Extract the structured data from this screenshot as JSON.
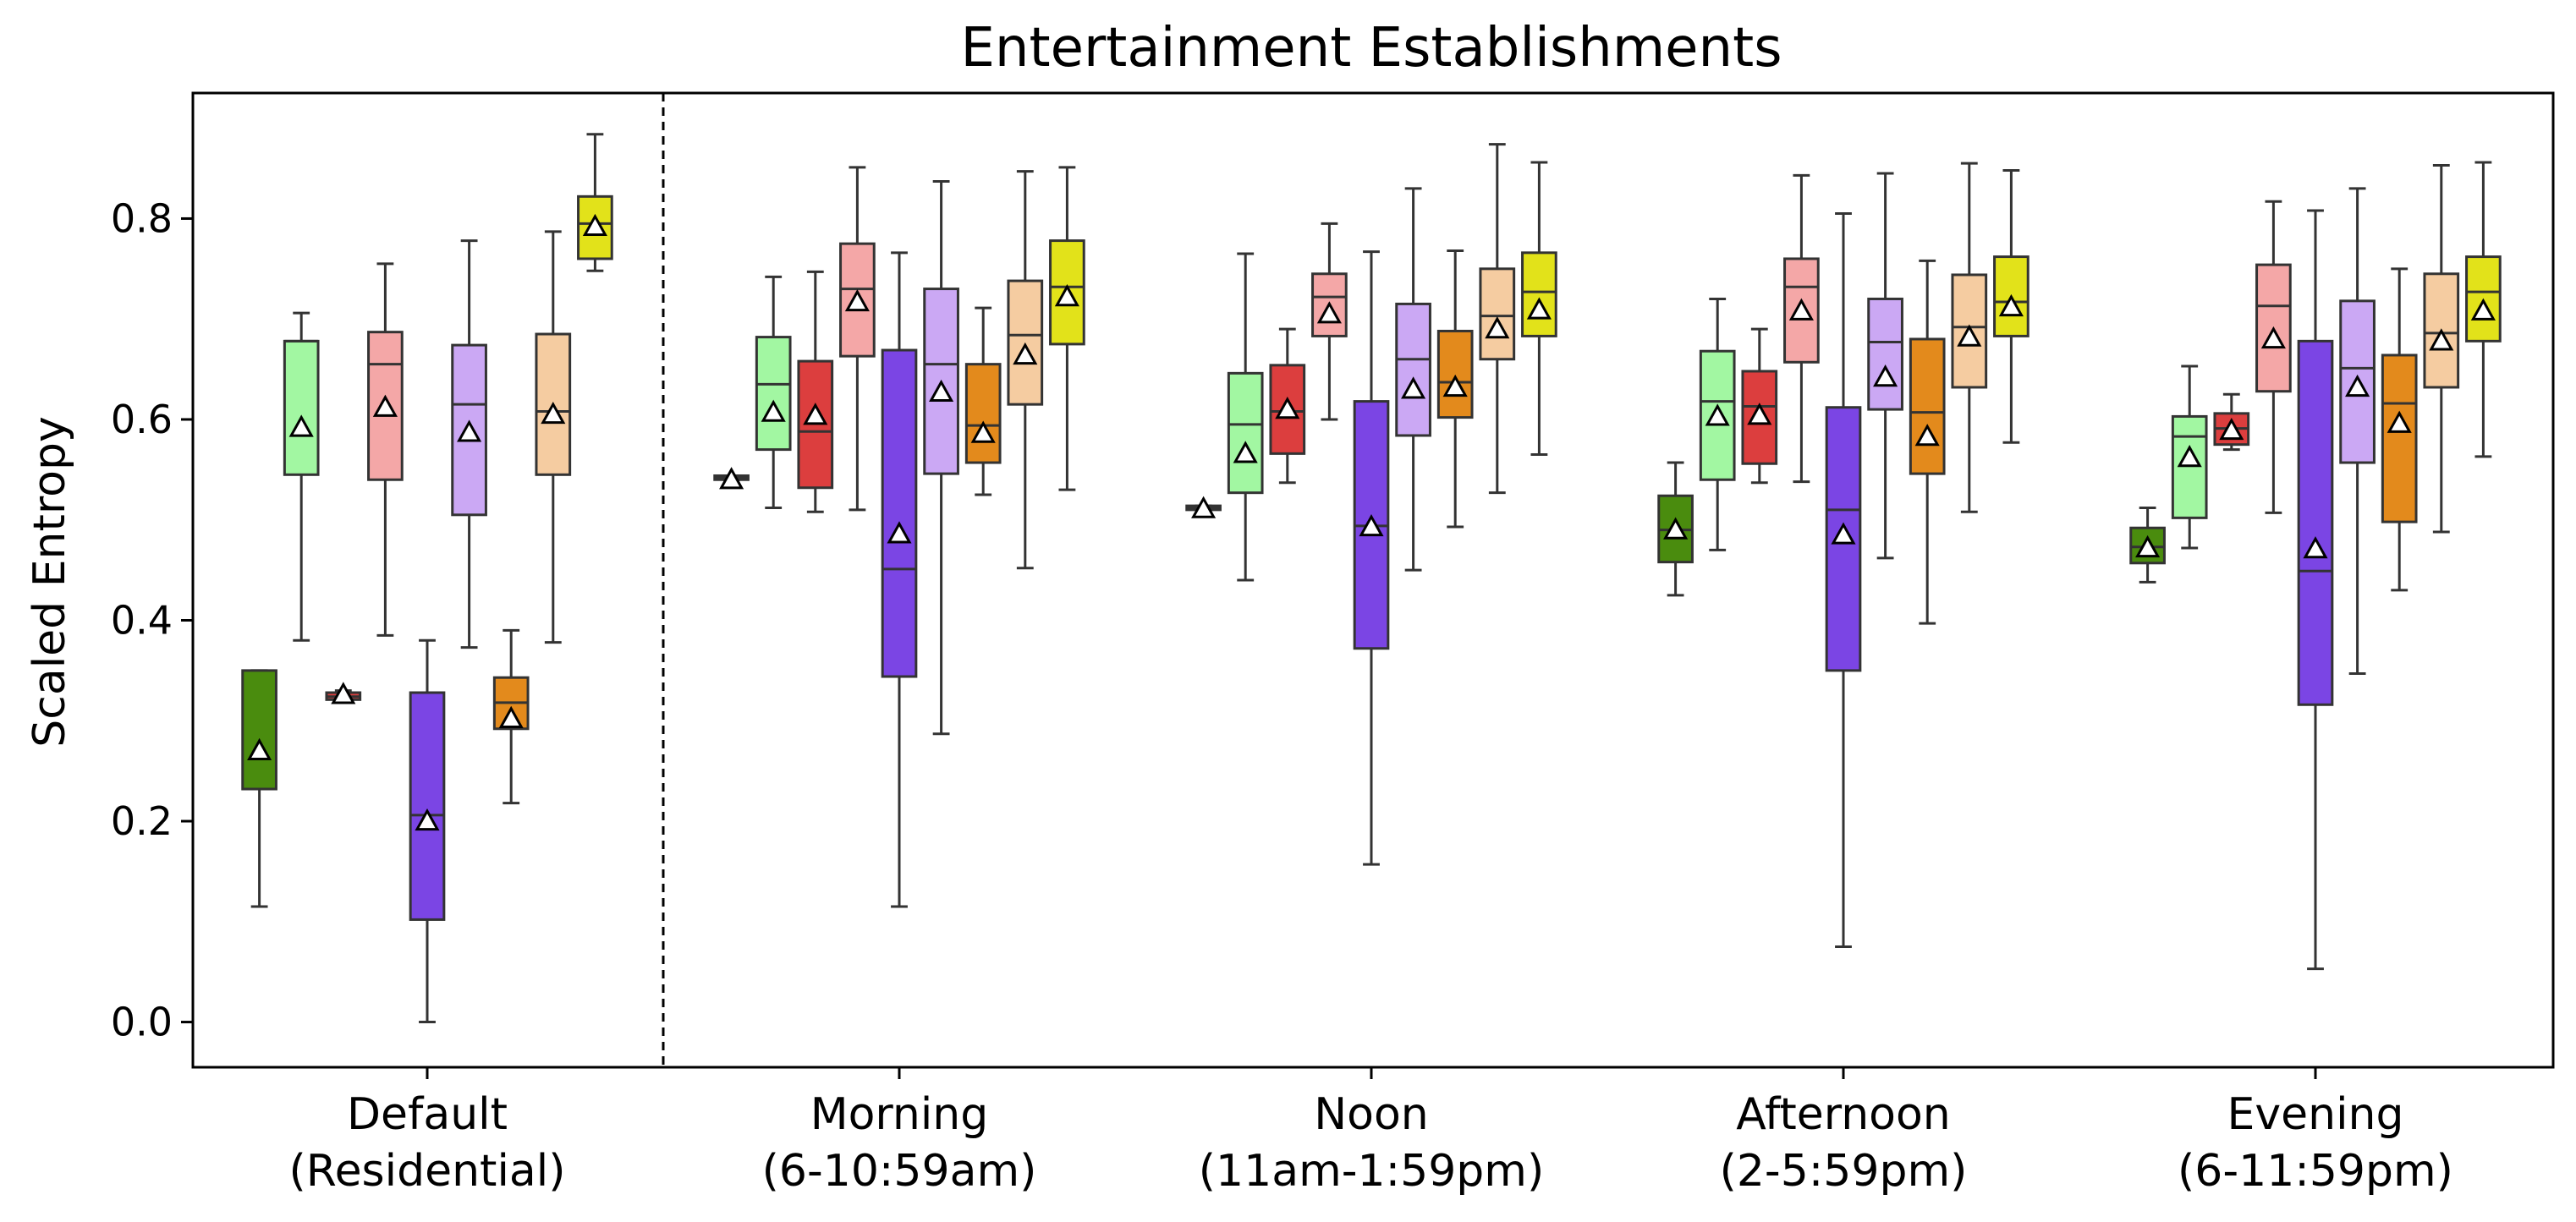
{
  "chart_data": {
    "type": "box",
    "title": "Entertainment Establishments",
    "xlabel": "",
    "ylabel": "Scaled Entropy",
    "ylim": [
      -0.045,
      0.925
    ],
    "yticks": [
      0.0,
      0.2,
      0.4,
      0.6,
      0.8
    ],
    "ytick_labels": [
      "0.0",
      "0.2",
      "0.4",
      "0.6",
      "0.8"
    ],
    "grid": false,
    "legend": "none",
    "separator_after_group": 0,
    "mean_marker": "triangle",
    "series_colors": [
      "#4a8c0e",
      "#a2f7a2",
      "#dc3e3e",
      "#f4a7a7",
      "#7b45e4",
      "#cba8f4",
      "#e38a1c",
      "#f5cca1",
      "#e2e21a"
    ],
    "groups": [
      {
        "label_line1": "Default",
        "label_line2": "(Residential)",
        "boxes": [
          {
            "series": 0,
            "whislo": 0.115,
            "q1": 0.232,
            "med": 0.232,
            "q3": 0.35,
            "whishi": 0.35,
            "mean": 0.27
          },
          {
            "series": 1,
            "whislo": 0.38,
            "q1": 0.545,
            "med": 0.678,
            "q3": 0.678,
            "whishi": 0.706,
            "mean": 0.592
          },
          {
            "series": 2,
            "whislo": 0.321,
            "q1": 0.321,
            "med": 0.324,
            "q3": 0.328,
            "whishi": 0.33,
            "mean": 0.326
          },
          {
            "series": 3,
            "whislo": 0.385,
            "q1": 0.54,
            "med": 0.655,
            "q3": 0.687,
            "whishi": 0.755,
            "mean": 0.612
          },
          {
            "series": 4,
            "whislo": 0.0,
            "q1": 0.102,
            "med": 0.206,
            "q3": 0.328,
            "whishi": 0.38,
            "mean": 0.2
          },
          {
            "series": 5,
            "whislo": 0.373,
            "q1": 0.505,
            "med": 0.615,
            "q3": 0.674,
            "whishi": 0.778,
            "mean": 0.587
          },
          {
            "series": 6,
            "whislo": 0.218,
            "q1": 0.292,
            "med": 0.318,
            "q3": 0.343,
            "whishi": 0.39,
            "mean": 0.302
          },
          {
            "series": 7,
            "whislo": 0.378,
            "q1": 0.545,
            "med": 0.608,
            "q3": 0.685,
            "whishi": 0.787,
            "mean": 0.605
          },
          {
            "series": 8,
            "whislo": 0.748,
            "q1": 0.76,
            "med": 0.795,
            "q3": 0.822,
            "whishi": 0.884,
            "mean": 0.792
          }
        ]
      },
      {
        "label_line1": "Morning",
        "label_line2": "(6-10:59am)",
        "boxes": [
          {
            "series": 0,
            "whislo": 0.54,
            "q1": 0.54,
            "med": 0.542,
            "q3": 0.544,
            "whishi": 0.544,
            "mean": 0.54
          },
          {
            "series": 1,
            "whislo": 0.512,
            "q1": 0.57,
            "med": 0.635,
            "q3": 0.682,
            "whishi": 0.742,
            "mean": 0.607
          },
          {
            "series": 2,
            "whislo": 0.508,
            "q1": 0.532,
            "med": 0.588,
            "q3": 0.658,
            "whishi": 0.747,
            "mean": 0.604
          },
          {
            "series": 3,
            "whislo": 0.51,
            "q1": 0.663,
            "med": 0.73,
            "q3": 0.775,
            "whishi": 0.851,
            "mean": 0.717
          },
          {
            "series": 4,
            "whislo": 0.115,
            "q1": 0.344,
            "med": 0.451,
            "q3": 0.669,
            "whishi": 0.766,
            "mean": 0.486
          },
          {
            "series": 5,
            "whislo": 0.287,
            "q1": 0.546,
            "med": 0.655,
            "q3": 0.73,
            "whishi": 0.837,
            "mean": 0.627
          },
          {
            "series": 6,
            "whislo": 0.525,
            "q1": 0.557,
            "med": 0.594,
            "q3": 0.655,
            "whishi": 0.711,
            "mean": 0.586
          },
          {
            "series": 7,
            "whislo": 0.452,
            "q1": 0.615,
            "med": 0.684,
            "q3": 0.738,
            "whishi": 0.847,
            "mean": 0.664
          },
          {
            "series": 8,
            "whislo": 0.53,
            "q1": 0.675,
            "med": 0.732,
            "q3": 0.778,
            "whishi": 0.851,
            "mean": 0.722
          }
        ]
      },
      {
        "label_line1": "Noon",
        "label_line2": "(11am-1:59pm)",
        "boxes": [
          {
            "series": 0,
            "whislo": 0.51,
            "q1": 0.51,
            "med": 0.512,
            "q3": 0.514,
            "whishi": 0.514,
            "mean": 0.511
          },
          {
            "series": 1,
            "whislo": 0.44,
            "q1": 0.527,
            "med": 0.595,
            "q3": 0.646,
            "whishi": 0.765,
            "mean": 0.566
          },
          {
            "series": 2,
            "whislo": 0.537,
            "q1": 0.566,
            "med": 0.608,
            "q3": 0.654,
            "whishi": 0.69,
            "mean": 0.61
          },
          {
            "series": 3,
            "whislo": 0.6,
            "q1": 0.683,
            "med": 0.722,
            "q3": 0.745,
            "whishi": 0.795,
            "mean": 0.705
          },
          {
            "series": 4,
            "whislo": 0.157,
            "q1": 0.372,
            "med": 0.494,
            "q3": 0.618,
            "whishi": 0.767,
            "mean": 0.493
          },
          {
            "series": 5,
            "whislo": 0.45,
            "q1": 0.584,
            "med": 0.66,
            "q3": 0.715,
            "whishi": 0.83,
            "mean": 0.63
          },
          {
            "series": 6,
            "whislo": 0.493,
            "q1": 0.602,
            "med": 0.637,
            "q3": 0.688,
            "whishi": 0.768,
            "mean": 0.632
          },
          {
            "series": 7,
            "whislo": 0.527,
            "q1": 0.66,
            "med": 0.703,
            "q3": 0.75,
            "whishi": 0.874,
            "mean": 0.69
          },
          {
            "series": 8,
            "whislo": 0.565,
            "q1": 0.683,
            "med": 0.727,
            "q3": 0.766,
            "whishi": 0.856,
            "mean": 0.709
          }
        ]
      },
      {
        "label_line1": "Afternoon",
        "label_line2": "(2-5:59pm)",
        "boxes": [
          {
            "series": 0,
            "whislo": 0.425,
            "q1": 0.458,
            "med": 0.49,
            "q3": 0.524,
            "whishi": 0.557,
            "mean": 0.49
          },
          {
            "series": 1,
            "whislo": 0.47,
            "q1": 0.54,
            "med": 0.618,
            "q3": 0.668,
            "whishi": 0.72,
            "mean": 0.603
          },
          {
            "series": 2,
            "whislo": 0.537,
            "q1": 0.556,
            "med": 0.613,
            "q3": 0.648,
            "whishi": 0.69,
            "mean": 0.604
          },
          {
            "series": 3,
            "whislo": 0.538,
            "q1": 0.657,
            "med": 0.732,
            "q3": 0.76,
            "whishi": 0.843,
            "mean": 0.708
          },
          {
            "series": 4,
            "whislo": 0.075,
            "q1": 0.35,
            "med": 0.51,
            "q3": 0.612,
            "whishi": 0.805,
            "mean": 0.485
          },
          {
            "series": 5,
            "whislo": 0.462,
            "q1": 0.61,
            "med": 0.677,
            "q3": 0.72,
            "whishi": 0.845,
            "mean": 0.642
          },
          {
            "series": 6,
            "whislo": 0.397,
            "q1": 0.546,
            "med": 0.607,
            "q3": 0.68,
            "whishi": 0.758,
            "mean": 0.583
          },
          {
            "series": 7,
            "whislo": 0.508,
            "q1": 0.632,
            "med": 0.692,
            "q3": 0.744,
            "whishi": 0.855,
            "mean": 0.682
          },
          {
            "series": 8,
            "whislo": 0.577,
            "q1": 0.683,
            "med": 0.717,
            "q3": 0.762,
            "whishi": 0.848,
            "mean": 0.712
          }
        ]
      },
      {
        "label_line1": "Evening",
        "label_line2": "(6-11:59pm)",
        "boxes": [
          {
            "series": 0,
            "whislo": 0.438,
            "q1": 0.457,
            "med": 0.473,
            "q3": 0.492,
            "whishi": 0.512,
            "mean": 0.472
          },
          {
            "series": 1,
            "whislo": 0.472,
            "q1": 0.502,
            "med": 0.583,
            "q3": 0.603,
            "whishi": 0.653,
            "mean": 0.562
          },
          {
            "series": 2,
            "whislo": 0.57,
            "q1": 0.575,
            "med": 0.591,
            "q3": 0.606,
            "whishi": 0.625,
            "mean": 0.589
          },
          {
            "series": 3,
            "whislo": 0.507,
            "q1": 0.628,
            "med": 0.713,
            "q3": 0.754,
            "whishi": 0.817,
            "mean": 0.68
          },
          {
            "series": 4,
            "whislo": 0.053,
            "q1": 0.316,
            "med": 0.449,
            "q3": 0.678,
            "whishi": 0.808,
            "mean": 0.471
          },
          {
            "series": 5,
            "whislo": 0.347,
            "q1": 0.557,
            "med": 0.651,
            "q3": 0.718,
            "whishi": 0.83,
            "mean": 0.632
          },
          {
            "series": 6,
            "whislo": 0.43,
            "q1": 0.498,
            "med": 0.616,
            "q3": 0.664,
            "whishi": 0.75,
            "mean": 0.596
          },
          {
            "series": 7,
            "whislo": 0.488,
            "q1": 0.632,
            "med": 0.686,
            "q3": 0.745,
            "whishi": 0.853,
            "mean": 0.678
          },
          {
            "series": 8,
            "whislo": 0.563,
            "q1": 0.678,
            "med": 0.727,
            "q3": 0.762,
            "whishi": 0.856,
            "mean": 0.708
          }
        ]
      }
    ]
  }
}
